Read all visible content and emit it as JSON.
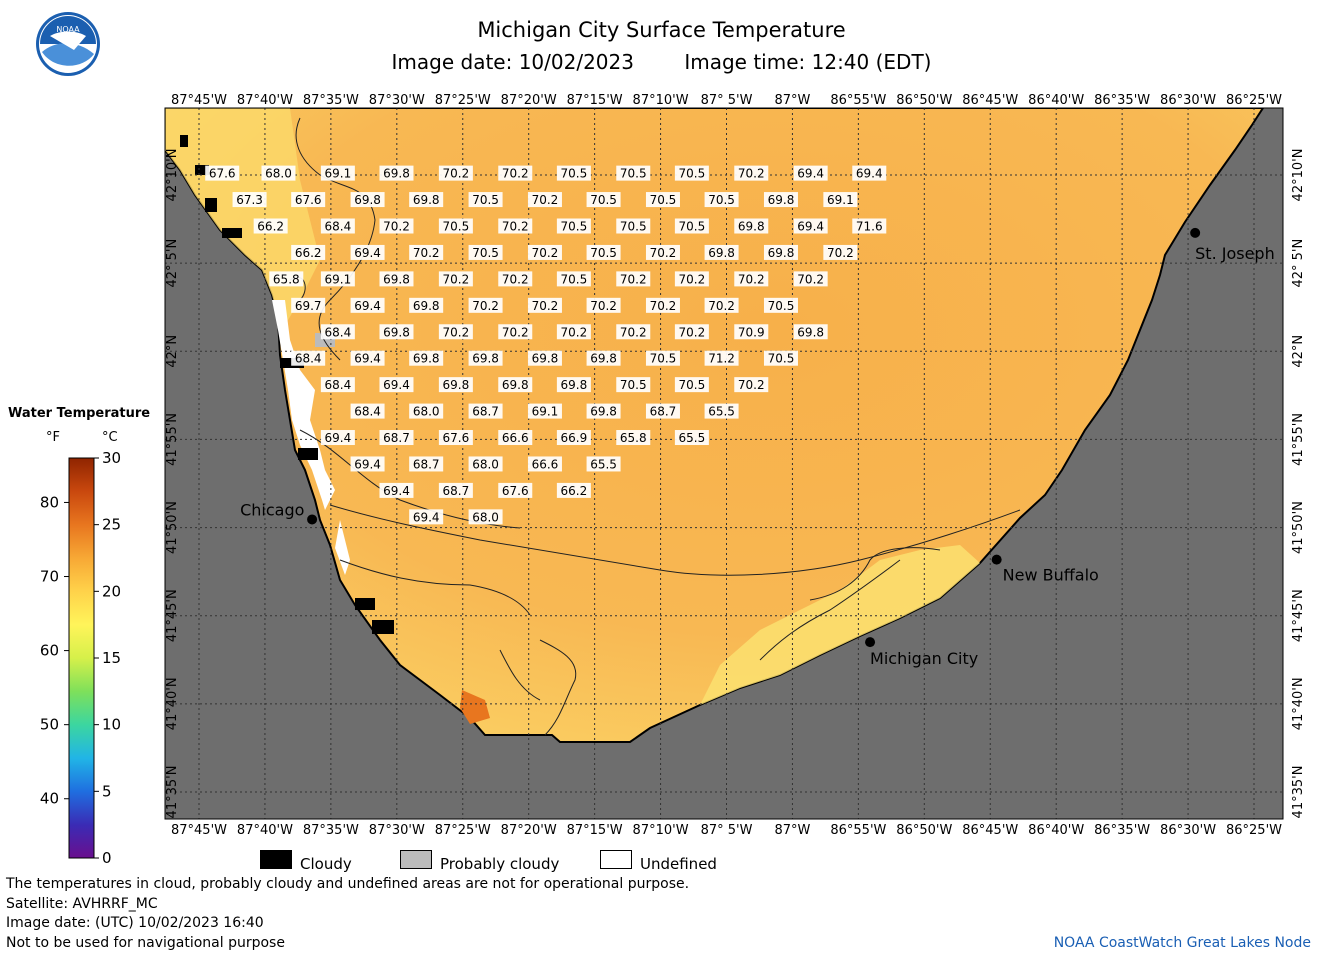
{
  "title": "Michigan City Surface Temperature",
  "image_date": "Image date: 10/02/2023",
  "image_time": "Image time: 12:40 (EDT)",
  "logo": {
    "icon": "noaa-logo",
    "text": "NOAA"
  },
  "lon_labels": [
    "87°45'W",
    "87°40'W",
    "87°35'W",
    "87°30'W",
    "87°25'W",
    "87°20'W",
    "87°15'W",
    "87°10'W",
    "87° 5'W",
    "87°W",
    "86°55'W",
    "86°50'W",
    "86°45'W",
    "86°40'W",
    "86°35'W",
    "86°30'W",
    "86°25'W"
  ],
  "lat_labels": [
    "42°10'N",
    "42° 5'N",
    "42°N",
    "41°55'N",
    "41°50'N",
    "41°45'N",
    "41°40'N",
    "41°35'N"
  ],
  "cities": [
    {
      "name": "Chicago",
      "lon": -87.622,
      "lat": 41.841
    },
    {
      "name": "St. Joseph",
      "lon": -86.492,
      "lat": 42.112
    },
    {
      "name": "New Buffalo",
      "lon": -86.746,
      "lat": 41.803
    },
    {
      "name": "Michigan City",
      "lon": -86.908,
      "lat": 41.725
    }
  ],
  "temperatures": [
    {
      "lon": -87.737,
      "lat": 42.168,
      "v": "67.6"
    },
    {
      "lon": -87.665,
      "lat": 42.168,
      "v": "68.0"
    },
    {
      "lon": -87.589,
      "lat": 42.168,
      "v": "69.1"
    },
    {
      "lon": -87.514,
      "lat": 42.168,
      "v": "69.8"
    },
    {
      "lon": -87.438,
      "lat": 42.168,
      "v": "70.2"
    },
    {
      "lon": -87.362,
      "lat": 42.168,
      "v": "70.2"
    },
    {
      "lon": -87.287,
      "lat": 42.168,
      "v": "70.5"
    },
    {
      "lon": -87.211,
      "lat": 42.168,
      "v": "70.5"
    },
    {
      "lon": -87.136,
      "lat": 42.168,
      "v": "70.5"
    },
    {
      "lon": -87.06,
      "lat": 42.168,
      "v": "70.2"
    },
    {
      "lon": -86.984,
      "lat": 42.168,
      "v": "69.4"
    },
    {
      "lon": -86.909,
      "lat": 42.168,
      "v": "69.4"
    },
    {
      "lon": -87.702,
      "lat": 42.143,
      "v": "67.3"
    },
    {
      "lon": -87.627,
      "lat": 42.143,
      "v": "67.6"
    },
    {
      "lon": -87.551,
      "lat": 42.143,
      "v": "69.8"
    },
    {
      "lon": -87.476,
      "lat": 42.143,
      "v": "69.8"
    },
    {
      "lon": -87.4,
      "lat": 42.143,
      "v": "70.5"
    },
    {
      "lon": -87.324,
      "lat": 42.143,
      "v": "70.2"
    },
    {
      "lon": -87.249,
      "lat": 42.143,
      "v": "70.5"
    },
    {
      "lon": -87.173,
      "lat": 42.143,
      "v": "70.5"
    },
    {
      "lon": -87.098,
      "lat": 42.143,
      "v": "70.5"
    },
    {
      "lon": -87.022,
      "lat": 42.143,
      "v": "69.8"
    },
    {
      "lon": -86.946,
      "lat": 42.143,
      "v": "69.1"
    },
    {
      "lon": -87.675,
      "lat": 42.118,
      "v": "66.2"
    },
    {
      "lon": -87.589,
      "lat": 42.118,
      "v": "68.4"
    },
    {
      "lon": -87.514,
      "lat": 42.118,
      "v": "70.2"
    },
    {
      "lon": -87.438,
      "lat": 42.118,
      "v": "70.5"
    },
    {
      "lon": -87.362,
      "lat": 42.118,
      "v": "70.2"
    },
    {
      "lon": -87.287,
      "lat": 42.118,
      "v": "70.5"
    },
    {
      "lon": -87.211,
      "lat": 42.118,
      "v": "70.5"
    },
    {
      "lon": -87.136,
      "lat": 42.118,
      "v": "70.5"
    },
    {
      "lon": -87.06,
      "lat": 42.118,
      "v": "69.8"
    },
    {
      "lon": -86.984,
      "lat": 42.118,
      "v": "69.4"
    },
    {
      "lon": -86.909,
      "lat": 42.118,
      "v": "71.6"
    },
    {
      "lon": -87.627,
      "lat": 42.093,
      "v": "66.2"
    },
    {
      "lon": -87.551,
      "lat": 42.093,
      "v": "69.4"
    },
    {
      "lon": -87.476,
      "lat": 42.093,
      "v": "70.2"
    },
    {
      "lon": -87.4,
      "lat": 42.093,
      "v": "70.5"
    },
    {
      "lon": -87.324,
      "lat": 42.093,
      "v": "70.2"
    },
    {
      "lon": -87.249,
      "lat": 42.093,
      "v": "70.5"
    },
    {
      "lon": -87.173,
      "lat": 42.093,
      "v": "70.2"
    },
    {
      "lon": -87.098,
      "lat": 42.093,
      "v": "69.8"
    },
    {
      "lon": -87.022,
      "lat": 42.093,
      "v": "69.8"
    },
    {
      "lon": -86.946,
      "lat": 42.093,
      "v": "70.2"
    },
    {
      "lon": -87.655,
      "lat": 42.068,
      "v": "65.8"
    },
    {
      "lon": -87.589,
      "lat": 42.068,
      "v": "69.1"
    },
    {
      "lon": -87.514,
      "lat": 42.068,
      "v": "69.8"
    },
    {
      "lon": -87.438,
      "lat": 42.068,
      "v": "70.2"
    },
    {
      "lon": -87.362,
      "lat": 42.068,
      "v": "70.2"
    },
    {
      "lon": -87.287,
      "lat": 42.068,
      "v": "70.5"
    },
    {
      "lon": -87.211,
      "lat": 42.068,
      "v": "70.2"
    },
    {
      "lon": -87.136,
      "lat": 42.068,
      "v": "70.2"
    },
    {
      "lon": -87.06,
      "lat": 42.068,
      "v": "70.2"
    },
    {
      "lon": -86.984,
      "lat": 42.068,
      "v": "70.2"
    },
    {
      "lon": -87.627,
      "lat": 42.043,
      "v": "69.7"
    },
    {
      "lon": -87.551,
      "lat": 42.043,
      "v": "69.4"
    },
    {
      "lon": -87.476,
      "lat": 42.043,
      "v": "69.8"
    },
    {
      "lon": -87.4,
      "lat": 42.043,
      "v": "70.2"
    },
    {
      "lon": -87.324,
      "lat": 42.043,
      "v": "70.2"
    },
    {
      "lon": -87.249,
      "lat": 42.043,
      "v": "70.2"
    },
    {
      "lon": -87.173,
      "lat": 42.043,
      "v": "70.2"
    },
    {
      "lon": -87.098,
      "lat": 42.043,
      "v": "70.2"
    },
    {
      "lon": -87.022,
      "lat": 42.043,
      "v": "70.5"
    },
    {
      "lon": -87.589,
      "lat": 42.018,
      "v": "68.4"
    },
    {
      "lon": -87.514,
      "lat": 42.018,
      "v": "69.8"
    },
    {
      "lon": -87.438,
      "lat": 42.018,
      "v": "70.2"
    },
    {
      "lon": -87.362,
      "lat": 42.018,
      "v": "70.2"
    },
    {
      "lon": -87.287,
      "lat": 42.018,
      "v": "70.2"
    },
    {
      "lon": -87.211,
      "lat": 42.018,
      "v": "70.2"
    },
    {
      "lon": -87.136,
      "lat": 42.018,
      "v": "70.2"
    },
    {
      "lon": -87.06,
      "lat": 42.018,
      "v": "70.9"
    },
    {
      "lon": -86.984,
      "lat": 42.018,
      "v": "69.8"
    },
    {
      "lon": -87.627,
      "lat": 41.993,
      "v": "68.4"
    },
    {
      "lon": -87.551,
      "lat": 41.993,
      "v": "69.4"
    },
    {
      "lon": -87.476,
      "lat": 41.993,
      "v": "69.8"
    },
    {
      "lon": -87.4,
      "lat": 41.993,
      "v": "69.8"
    },
    {
      "lon": -87.324,
      "lat": 41.993,
      "v": "69.8"
    },
    {
      "lon": -87.249,
      "lat": 41.993,
      "v": "69.8"
    },
    {
      "lon": -87.173,
      "lat": 41.993,
      "v": "70.5"
    },
    {
      "lon": -87.098,
      "lat": 41.993,
      "v": "71.2"
    },
    {
      "lon": -87.022,
      "lat": 41.993,
      "v": "70.5"
    },
    {
      "lon": -87.589,
      "lat": 41.968,
      "v": "68.4"
    },
    {
      "lon": -87.514,
      "lat": 41.968,
      "v": "69.4"
    },
    {
      "lon": -87.438,
      "lat": 41.968,
      "v": "69.8"
    },
    {
      "lon": -87.362,
      "lat": 41.968,
      "v": "69.8"
    },
    {
      "lon": -87.287,
      "lat": 41.968,
      "v": "69.8"
    },
    {
      "lon": -87.211,
      "lat": 41.968,
      "v": "70.5"
    },
    {
      "lon": -87.136,
      "lat": 41.968,
      "v": "70.5"
    },
    {
      "lon": -87.06,
      "lat": 41.968,
      "v": "70.2"
    },
    {
      "lon": -87.551,
      "lat": 41.943,
      "v": "68.4"
    },
    {
      "lon": -87.476,
      "lat": 41.943,
      "v": "68.0"
    },
    {
      "lon": -87.4,
      "lat": 41.943,
      "v": "68.7"
    },
    {
      "lon": -87.324,
      "lat": 41.943,
      "v": "69.1"
    },
    {
      "lon": -87.249,
      "lat": 41.943,
      "v": "69.8"
    },
    {
      "lon": -87.173,
      "lat": 41.943,
      "v": "68.7"
    },
    {
      "lon": -87.098,
      "lat": 41.943,
      "v": "65.5"
    },
    {
      "lon": -87.589,
      "lat": 41.918,
      "v": "69.4"
    },
    {
      "lon": -87.514,
      "lat": 41.918,
      "v": "68.7"
    },
    {
      "lon": -87.438,
      "lat": 41.918,
      "v": "67.6"
    },
    {
      "lon": -87.362,
      "lat": 41.918,
      "v": "66.6"
    },
    {
      "lon": -87.287,
      "lat": 41.918,
      "v": "66.9"
    },
    {
      "lon": -87.211,
      "lat": 41.918,
      "v": "65.8"
    },
    {
      "lon": -87.136,
      "lat": 41.918,
      "v": "65.5"
    },
    {
      "lon": -87.551,
      "lat": 41.893,
      "v": "69.4"
    },
    {
      "lon": -87.476,
      "lat": 41.893,
      "v": "68.7"
    },
    {
      "lon": -87.4,
      "lat": 41.893,
      "v": "68.0"
    },
    {
      "lon": -87.324,
      "lat": 41.893,
      "v": "66.6"
    },
    {
      "lon": -87.249,
      "lat": 41.893,
      "v": "65.5"
    },
    {
      "lon": -87.514,
      "lat": 41.868,
      "v": "69.4"
    },
    {
      "lon": -87.438,
      "lat": 41.868,
      "v": "68.7"
    },
    {
      "lon": -87.362,
      "lat": 41.868,
      "v": "67.6"
    },
    {
      "lon": -87.287,
      "lat": 41.868,
      "v": "66.2"
    },
    {
      "lon": -87.476,
      "lat": 41.843,
      "v": "69.4"
    },
    {
      "lon": -87.4,
      "lat": 41.843,
      "v": "68.0"
    }
  ],
  "colorbar": {
    "title": "Water Temperature",
    "unit_f": "°F",
    "unit_c": "°C",
    "f_ticks": [
      "40",
      "50",
      "60",
      "70",
      "80"
    ],
    "c_ticks": [
      "0",
      "5",
      "10",
      "15",
      "20",
      "25",
      "30"
    ],
    "colors": [
      "#6a0f8e",
      "#3a2bb5",
      "#1f6fe0",
      "#21b5e6",
      "#3cd6a0",
      "#7fe05a",
      "#d6f04a",
      "#fff45a",
      "#ffd24a",
      "#f7a835",
      "#e8761f",
      "#c9480e",
      "#8f2400"
    ]
  },
  "legend": [
    {
      "label": "Cloudy",
      "color": "#000000"
    },
    {
      "label": "Probably cloudy",
      "color": "#bbbbbb"
    },
    {
      "label": "Undefined",
      "color": "#ffffff"
    }
  ],
  "notes": [
    "The temperatures in cloud, probably cloudy and undefined areas are not for operational purpose.",
    "Satellite: AVHRRF_MC",
    "Image date: (UTC) 10/02/2023  16:40",
    "Not to be used for navigational purpose"
  ],
  "credit": "NOAA CoastWatch Great Lakes Node"
}
